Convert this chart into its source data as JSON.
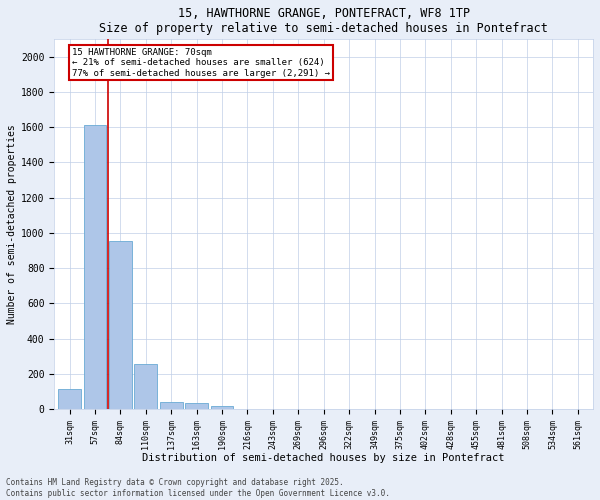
{
  "title1": "15, HAWTHORNE GRANGE, PONTEFRACT, WF8 1TP",
  "title2": "Size of property relative to semi-detached houses in Pontefract",
  "xlabel": "Distribution of semi-detached houses by size in Pontefract",
  "ylabel": "Number of semi-detached properties",
  "categories": [
    "31sqm",
    "57sqm",
    "84sqm",
    "110sqm",
    "137sqm",
    "163sqm",
    "190sqm",
    "216sqm",
    "243sqm",
    "269sqm",
    "296sqm",
    "322sqm",
    "349sqm",
    "375sqm",
    "402sqm",
    "428sqm",
    "455sqm",
    "481sqm",
    "508sqm",
    "534sqm",
    "561sqm"
  ],
  "values": [
    115,
    1610,
    955,
    255,
    40,
    35,
    18,
    0,
    0,
    0,
    0,
    0,
    0,
    0,
    0,
    0,
    0,
    0,
    0,
    0,
    0
  ],
  "bar_color": "#aec6e8",
  "bar_edge_color": "#6aaad4",
  "vline_x": 1.5,
  "vline_color": "#cc0000",
  "annotation_title": "15 HAWTHORNE GRANGE: 70sqm",
  "annotation_line1": "← 21% of semi-detached houses are smaller (624)",
  "annotation_line2": "77% of semi-detached houses are larger (2,291) →",
  "annotation_box_color": "#cc0000",
  "ylim": [
    0,
    2100
  ],
  "yticks": [
    0,
    200,
    400,
    600,
    800,
    1000,
    1200,
    1400,
    1600,
    1800,
    2000
  ],
  "footer1": "Contains HM Land Registry data © Crown copyright and database right 2025.",
  "footer2": "Contains public sector information licensed under the Open Government Licence v3.0.",
  "bg_color": "#e8eef8",
  "plot_bg_color": "#ffffff"
}
